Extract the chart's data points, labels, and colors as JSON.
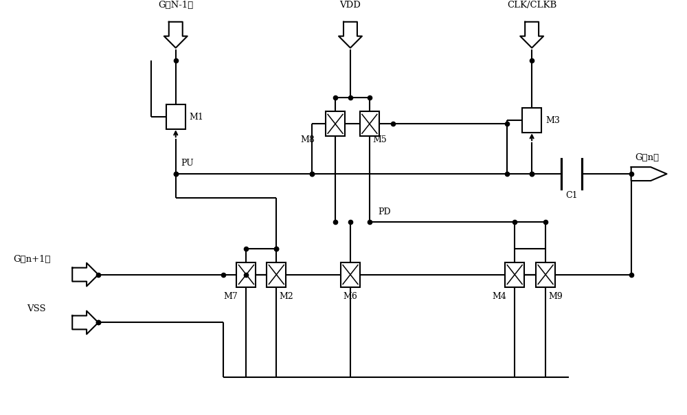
{
  "figsize": [
    10.0,
    6.04
  ],
  "bg": "#ffffff",
  "lc": "#000000",
  "lw": 1.5,
  "labels": {
    "GN1": "G（N-1）",
    "VDD": "VDD",
    "CLK": "CLK/CLKB",
    "Gn": "G（n）",
    "Gnp1": "G（n+1）",
    "VSS": "VSS",
    "PU": "PU",
    "PD": "PD",
    "C1": "C1",
    "M1": "M1",
    "M2": "M2",
    "M3": "M3",
    "M4": "M4",
    "M5": "M5",
    "M6": "M6",
    "M7": "M7",
    "M8": "M8",
    "M9": "M9"
  }
}
